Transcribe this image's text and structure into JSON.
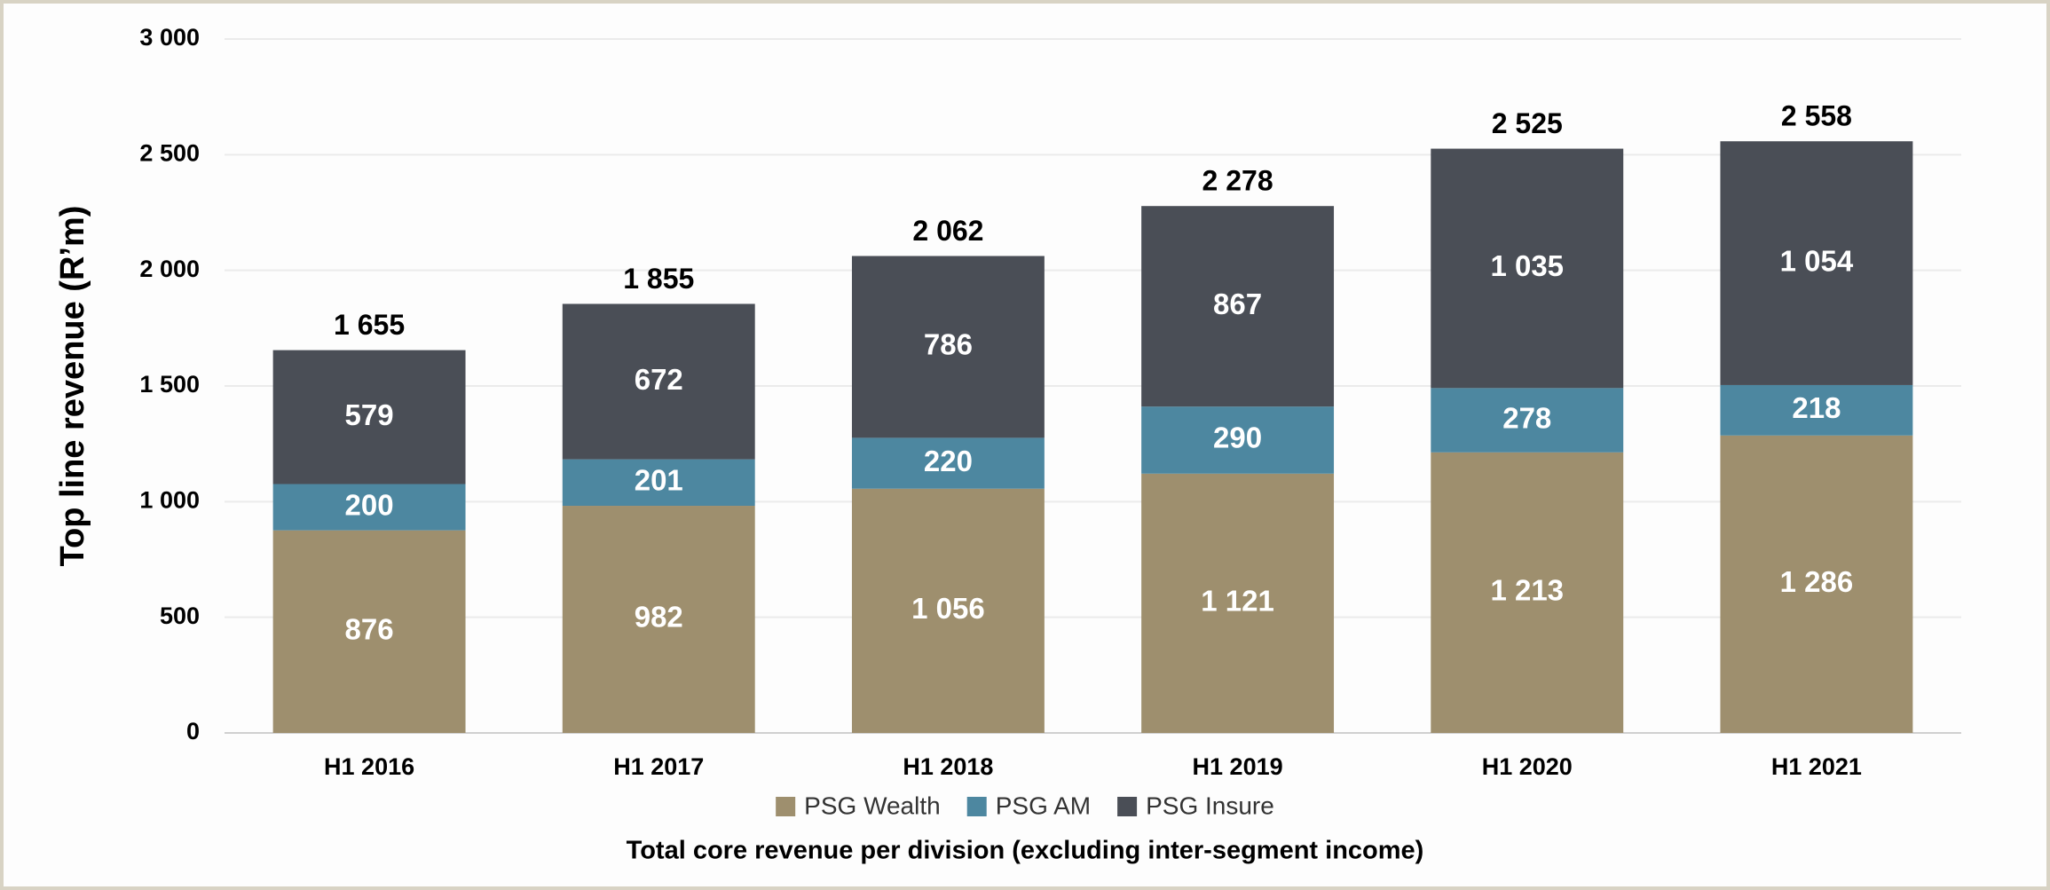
{
  "chart_data": {
    "type": "stacked_bar",
    "y_label": "Top line revenue (R’m)",
    "footnote": "Total core revenue per division (excluding inter-segment income)",
    "categories": [
      "H1 2016",
      "H1 2017",
      "H1 2018",
      "H1 2019",
      "H1 2020",
      "H1 2021"
    ],
    "series": [
      {
        "name": "PSG Wealth",
        "color": "#9e8f6e",
        "values": [
          876,
          982,
          1056,
          1121,
          1213,
          1286
        ],
        "value_labels": [
          "876",
          "982",
          "1 056",
          "1 121",
          "1 213",
          "1 286"
        ]
      },
      {
        "name": "PSG AM",
        "color": "#4d87a0",
        "values": [
          200,
          201,
          220,
          290,
          278,
          218
        ],
        "value_labels": [
          "200",
          "201",
          "220",
          "290",
          "278",
          "218"
        ]
      },
      {
        "name": "PSG Insure",
        "color": "#4a4e56",
        "values": [
          579,
          672,
          786,
          867,
          1035,
          1054
        ],
        "value_labels": [
          "579",
          "672",
          "786",
          "867",
          "1 035",
          "1 054"
        ]
      }
    ],
    "total_labels": [
      "1 655",
      "1 855",
      "2 062",
      "2 278",
      "2 525",
      "2 558"
    ],
    "ylim": [
      0,
      3000
    ],
    "yticks": [
      0,
      500,
      {
        "value": 1000,
        "label": "1 000"
      },
      {
        "value": 1500,
        "label": "1 500"
      },
      {
        "value": 2000,
        "label": "2 000"
      },
      {
        "value": 2500,
        "label": "2 500"
      },
      {
        "value": 3000,
        "label": "3 000"
      }
    ],
    "grid": true,
    "legend": "bottom"
  }
}
